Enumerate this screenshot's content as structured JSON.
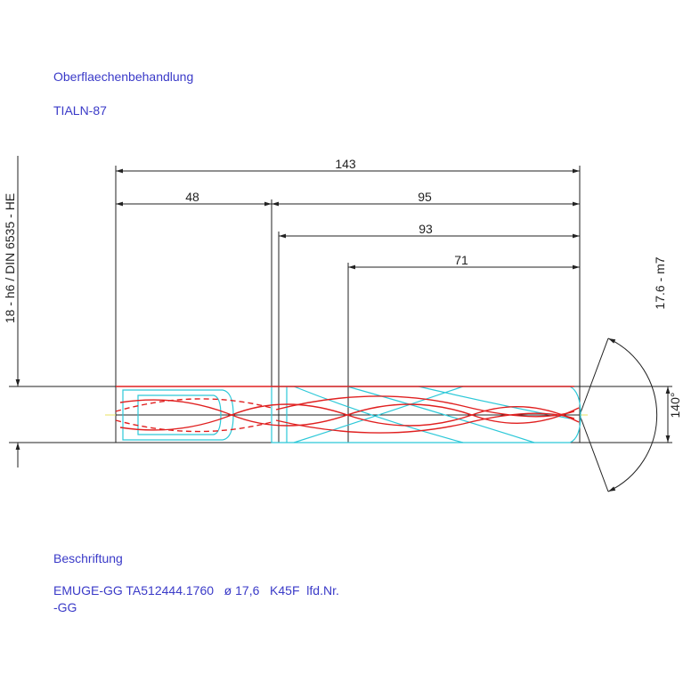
{
  "header": {
    "surface_label": "Oberflaechenbehandlung",
    "surface_value": "TIALN-87"
  },
  "dimensions": {
    "total": "143",
    "shank": "48",
    "body": "95",
    "flute": "93",
    "cutting": "71",
    "shank_diameter": "18 - h6 / DIN 6535 - HE",
    "diameter": "17.6 - m7",
    "point_angle": "140°"
  },
  "marking": {
    "label": "Beschriftung",
    "line1": "EMUGE-GG TA512444.1760   ø 17,6   K45F  lfd.Nr.",
    "line2": "-GG"
  }
}
